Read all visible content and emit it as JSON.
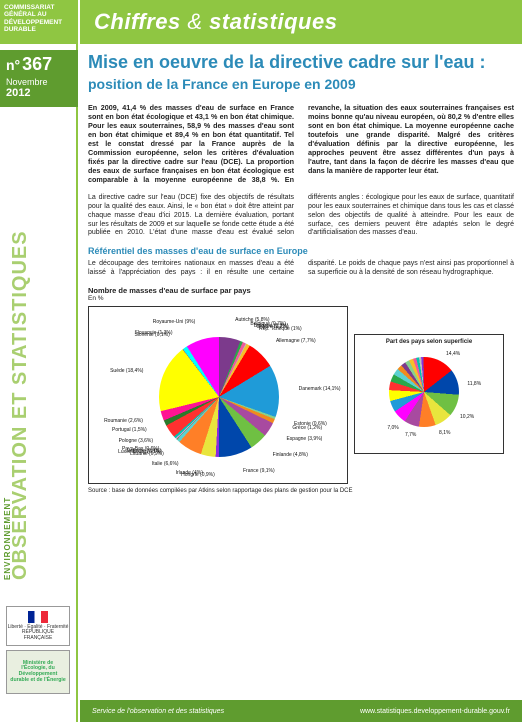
{
  "org": {
    "commissariat": "COMMISSARIAT GÉNÉRAL AU DÉVELOPPEMENT DURABLE"
  },
  "header": {
    "title_a": "Chiffres",
    "amp": "&",
    "title_b": "statistiques"
  },
  "issue": {
    "prefix": "n°",
    "number": "367",
    "month": "Novembre",
    "year": "2012"
  },
  "sidebar": {
    "vertical": "OBSERVATION ET STATISTIQUES",
    "env": "ENVIRONNEMENT",
    "logo1_caption": "Liberté · Égalité · Fraternité",
    "logo1_sub": "RÉPUBLIQUE FRANÇAISE",
    "logo2": "Ministère de l'Écologie, du Développement durable et de l'Énergie"
  },
  "article": {
    "title_main": "Mise en oeuvre de la directive cadre sur l'eau :",
    "title_sub": "position de la France en Europe en 2009",
    "lead": "En 2009, 41,4 % des masses d'eau de surface en France sont en bon état écologique et 43,1 % en bon état chimique. Pour les eaux souterraines, 58,9 % des masses d'eau sont en bon état chimique et 89,4 % en bon état quantitatif. Tel est le constat dressé par la France auprès de la Commission européenne, selon les critères d'évaluation fixés par la directive cadre sur l'eau (DCE). La proportion des eaux de surface françaises en bon état écologique est comparable à la moyenne européenne de 38,8 %. En revanche, la situation des eaux souterraines françaises est moins bonne qu'au niveau européen, où 80,2 % d'entre elles sont en bon état chimique. La moyenne européenne cache toutefois une grande disparité. Malgré des critères d'évaluation définis par la directive européenne, les approches peuvent être assez différentes d'un pays à l'autre, tant dans la façon de décrire les masses d'eau que dans la manière de rapporter leur état.",
    "para1": "La directive cadre sur l'eau (DCE) fixe des objectifs de résultats pour la qualité des eaux. Ainsi, le « bon état » doit être atteint par chaque masse d'eau d'ici 2015. La dernière évaluation, portant sur les résultats de 2009 et sur laquelle se fonde cette étude a été publiée en 2010. L'état d'une masse d'eau est évalué selon différents angles : écologique pour les eaux de surface, quantitatif pour les eaux souterraines et chimique dans tous les cas et classé selon des objectifs de qualité à atteindre. Pour les eaux de surface, ces derniers peuvent être adaptés selon le degré d'artificialisation des masses d'eau.",
    "section_h": "Référentiel des masses d'eau de surface en Europe",
    "para2": "Le découpage des territoires nationaux en masses d'eau a été laissé à l'appréciation des pays : il en résulte une certaine disparité. Le poids de chaque pays n'est ainsi pas proportionnel à sa superficie ou à la densité de son réseau hydrographique.",
    "chart_title": "Nombre de masses d'eau de surface par pays",
    "chart_unit": "En %",
    "chart_small_title": "Part des pays selon superficie",
    "source": "Source : base de données compilées par Atkins selon rapportage des plans de gestion pour la DCE"
  },
  "pie_main": {
    "slices": [
      {
        "label": "Autriche",
        "pct": 5.8,
        "color": "#7c3a8c"
      },
      {
        "label": "Belgique",
        "pct": 0.7,
        "color": "#2aa84a"
      },
      {
        "label": "Bulgarie",
        "pct": 0.9,
        "color": "#f05a9b"
      },
      {
        "label": "Chypre",
        "pct": 0.2,
        "color": "#bdbdbd"
      },
      {
        "label": "Rép. Tchèque",
        "pct": 1.0,
        "color": "#f6c02a"
      },
      {
        "label": "Allemagne",
        "pct": 7.7,
        "color": "#ff0000"
      },
      {
        "label": "Danemark",
        "pct": 14.1,
        "color": "#1f9bd8"
      },
      {
        "label": "Estonie",
        "pct": 0.6,
        "color": "#86d18f"
      },
      {
        "label": "Grèce",
        "pct": 1.2,
        "color": "#f08a1e"
      },
      {
        "label": "Espagne",
        "pct": 3.9,
        "color": "#a84aa0"
      },
      {
        "label": "Finlande",
        "pct": 4.8,
        "color": "#6fc043"
      },
      {
        "label": "France",
        "pct": 9.1,
        "color": "#0047ab"
      },
      {
        "label": "Hongrie",
        "pct": 0.9,
        "color": "#8a2be2"
      },
      {
        "label": "Irlande",
        "pct": 4.0,
        "color": "#e8e53d"
      },
      {
        "label": "Italie",
        "pct": 6.6,
        "color": "#ff7f27"
      },
      {
        "label": "Lituanie",
        "pct": 0.9,
        "color": "#5bd1d1"
      },
      {
        "label": "Luxembourg",
        "pct": 0.1,
        "color": "#6d8b20"
      },
      {
        "label": "Lettonie",
        "pct": 0.4,
        "color": "#c9a0dc"
      },
      {
        "label": "Pays-Bas",
        "pct": 0.6,
        "color": "#00c4b0"
      },
      {
        "label": "Pologne",
        "pct": 3.6,
        "color": "#ff3030"
      },
      {
        "label": "Portugal",
        "pct": 1.5,
        "color": "#2a7a2a"
      },
      {
        "label": "Roumanie",
        "pct": 2.6,
        "color": "#ff1493"
      },
      {
        "label": "Suède",
        "pct": 18.4,
        "color": "#ffff00"
      },
      {
        "label": "Slovénie",
        "pct": 0.1,
        "color": "#b03060"
      },
      {
        "label": "Slovaquie",
        "pct": 1.3,
        "color": "#00ffff"
      },
      {
        "label": "Royaume-Uni",
        "pct": 9.0,
        "color": "#ff00ff"
      }
    ]
  },
  "pie_small": {
    "slices": [
      {
        "label": "",
        "pct": 14.4,
        "color": "#ff0000"
      },
      {
        "label": "",
        "pct": 11.8,
        "color": "#0047ab"
      },
      {
        "label": "",
        "pct": 10.2,
        "color": "#6fc043"
      },
      {
        "label": "",
        "pct": 8.1,
        "color": "#e8e53d"
      },
      {
        "label": "",
        "pct": 7.7,
        "color": "#ff7f27"
      },
      {
        "label": "",
        "pct": 7.0,
        "color": "#a84aa0"
      },
      {
        "label": "",
        "pct": 6.3,
        "color": "#ff00ff"
      },
      {
        "label": "",
        "pct": 5.2,
        "color": "#1f9bd8"
      },
      {
        "label": "",
        "pct": 5.0,
        "color": "#ffff00"
      },
      {
        "label": "",
        "pct": 4.0,
        "color": "#ff3030"
      },
      {
        "label": "",
        "pct": 3.5,
        "color": "#2aa84a"
      },
      {
        "label": "",
        "pct": 3.0,
        "color": "#5bd1d1"
      },
      {
        "label": "",
        "pct": 2.4,
        "color": "#f08a1e"
      },
      {
        "label": "",
        "pct": 2.2,
        "color": "#7c3a8c"
      },
      {
        "label": "",
        "pct": 2.0,
        "color": "#86d18f"
      },
      {
        "label": "",
        "pct": 1.9,
        "color": "#f6c02a"
      },
      {
        "label": "",
        "pct": 1.5,
        "color": "#f05a9b"
      },
      {
        "label": "",
        "pct": 1.3,
        "color": "#00c4b0"
      },
      {
        "label": "",
        "pct": 1.0,
        "color": "#bdbdbd"
      },
      {
        "label": "",
        "pct": 0.8,
        "color": "#8a2be2"
      },
      {
        "label": "",
        "pct": 0.5,
        "color": "#b03060"
      }
    ],
    "visible_labels": [
      {
        "text": "14,4%",
        "angle": 30
      },
      {
        "text": "11,8%",
        "angle": 80
      },
      {
        "text": "10,2%",
        "angle": 125
      },
      {
        "text": "8,1%",
        "angle": 160
      },
      {
        "text": "7,7%",
        "angle": 190
      },
      {
        "text": "7,0%",
        "angle": 215
      }
    ]
  },
  "footer": {
    "left": "Service de l'observation et des statistiques",
    "right": "www.statistiques.developpement-durable.gouv.fr"
  }
}
